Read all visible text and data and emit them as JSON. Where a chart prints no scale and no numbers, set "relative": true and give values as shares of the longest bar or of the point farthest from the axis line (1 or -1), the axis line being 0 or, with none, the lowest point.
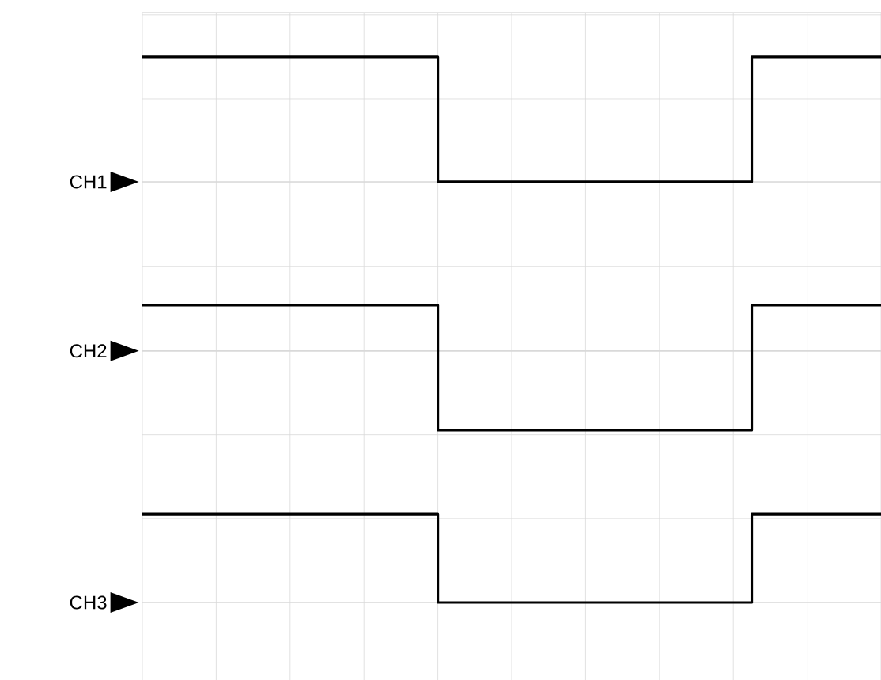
{
  "chart_data": {
    "type": "step",
    "relative": true,
    "grid": true,
    "categories": [
      null,
      null,
      null,
      null,
      null,
      null,
      null,
      null,
      null,
      null,
      null,
      null,
      null,
      null,
      null,
      null,
      null,
      null,
      null,
      null,
      null,
      null,
      null,
      null,
      null,
      null,
      null,
      null,
      null,
      null,
      null,
      null,
      null,
      null,
      null,
      null,
      null,
      null,
      null,
      null,
      null
    ],
    "series": [
      {
        "color": "#000000",
        "values": [
          1,
          1,
          1,
          1,
          1,
          1,
          1,
          1,
          1,
          1,
          1,
          1,
          1,
          1,
          1,
          1,
          0.771,
          0.771,
          0.771,
          0.771,
          0.771,
          0.771,
          0.771,
          0.771,
          0.771,
          0.771,
          0.771,
          0.771,
          0.771,
          0.771,
          0.771,
          0.771,
          0.771,
          1,
          1,
          1,
          1,
          1,
          1,
          1,
          1
        ]
      },
      {
        "color": "#000000",
        "values": [
          0.545,
          0.545,
          0.545,
          0.545,
          0.545,
          0.545,
          0.545,
          0.545,
          0.545,
          0.545,
          0.545,
          0.545,
          0.545,
          0.545,
          0.545,
          0.545,
          0.316,
          0.316,
          0.316,
          0.316,
          0.316,
          0.316,
          0.316,
          0.316,
          0.316,
          0.316,
          0.316,
          0.316,
          0.316,
          0.316,
          0.316,
          0.316,
          0.316,
          0.545,
          0.545,
          0.545,
          0.545,
          0.545,
          0.545,
          0.545,
          0.545
        ]
      },
      {
        "color": "#000000",
        "values": [
          0.162,
          0.162,
          0.162,
          0.162,
          0.162,
          0.162,
          0.162,
          0.162,
          0.162,
          0.162,
          0.162,
          0.162,
          0.162,
          0.162,
          0.162,
          0.162,
          0,
          0,
          0,
          0,
          0,
          0,
          0,
          0,
          0,
          0,
          0,
          0,
          0,
          0,
          0,
          0,
          0,
          0.162,
          0.162,
          0.162,
          0.162,
          0.162,
          0.162,
          0.162,
          0.162
        ]
      }
    ],
    "ref_lines": [
      {
        "axis": "y",
        "value": 0.771,
        "label": "CH1",
        "color": "#d9d9d9"
      },
      {
        "axis": "y",
        "value": 0.461,
        "label": "CH2",
        "color": "#d9d9d9"
      },
      {
        "axis": "y",
        "value": 0,
        "label": "CH3",
        "color": "#d9d9d9"
      }
    ]
  }
}
